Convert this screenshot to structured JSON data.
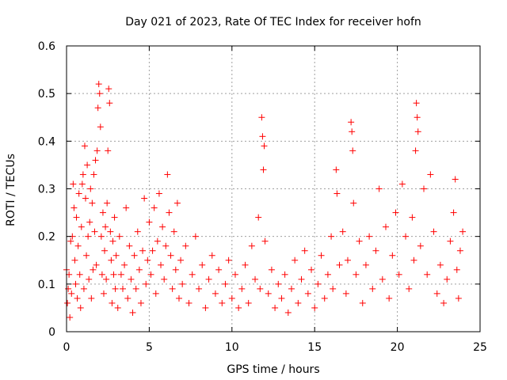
{
  "chart_data": {
    "type": "scatter",
    "title": "Day 021 of 2023, Rate Of TEC Index for receiver hofn",
    "xlabel": "GPS time / hours",
    "ylabel": "ROTI / TECUs",
    "xlim": [
      0,
      25
    ],
    "ylim": [
      0,
      0.6
    ],
    "xticks": [
      0,
      5,
      10,
      15,
      20,
      25
    ],
    "xtick_labels": [
      "0",
      "5",
      "10",
      "15",
      "20",
      "25"
    ],
    "yticks": [
      0,
      0.1,
      0.2,
      0.3,
      0.4,
      0.5,
      0.6
    ],
    "ytick_labels": [
      "0",
      "0.1",
      "0.2",
      "0.3",
      "0.4",
      "0.5",
      "0.6"
    ],
    "grid": true,
    "marker": "+",
    "color": "#ff0000",
    "series": [
      {
        "name": "ROTI",
        "points": [
          [
            0.0,
            0.13
          ],
          [
            0.05,
            0.06
          ],
          [
            0.1,
            0.09
          ],
          [
            0.15,
            0.12
          ],
          [
            0.2,
            0.03
          ],
          [
            0.25,
            0.19
          ],
          [
            0.3,
            0.08
          ],
          [
            0.35,
            0.2
          ],
          [
            0.4,
            0.31
          ],
          [
            0.45,
            0.26
          ],
          [
            0.5,
            0.15
          ],
          [
            0.55,
            0.1
          ],
          [
            0.6,
            0.24
          ],
          [
            0.65,
            0.07
          ],
          [
            0.7,
            0.18
          ],
          [
            0.75,
            0.29
          ],
          [
            0.8,
            0.12
          ],
          [
            0.85,
            0.05
          ],
          [
            0.9,
            0.22
          ],
          [
            0.95,
            0.31
          ],
          [
            1.0,
            0.33
          ],
          [
            1.05,
            0.09
          ],
          [
            1.1,
            0.39
          ],
          [
            1.15,
            0.28
          ],
          [
            1.2,
            0.16
          ],
          [
            1.25,
            0.35
          ],
          [
            1.3,
            0.2
          ],
          [
            1.35,
            0.11
          ],
          [
            1.4,
            0.23
          ],
          [
            1.45,
            0.3
          ],
          [
            1.5,
            0.07
          ],
          [
            1.55,
            0.27
          ],
          [
            1.6,
            0.13
          ],
          [
            1.65,
            0.33
          ],
          [
            1.7,
            0.21
          ],
          [
            1.75,
            0.36
          ],
          [
            1.8,
            0.14
          ],
          [
            1.85,
            0.38
          ],
          [
            1.9,
            0.47
          ],
          [
            1.95,
            0.52
          ],
          [
            2.0,
            0.5
          ],
          [
            2.05,
            0.43
          ],
          [
            2.1,
            0.2
          ],
          [
            2.15,
            0.12
          ],
          [
            2.2,
            0.25
          ],
          [
            2.25,
            0.08
          ],
          [
            2.3,
            0.17
          ],
          [
            2.35,
            0.22
          ],
          [
            2.4,
            0.11
          ],
          [
            2.45,
            0.27
          ],
          [
            2.5,
            0.38
          ],
          [
            2.55,
            0.51
          ],
          [
            2.6,
            0.48
          ],
          [
            2.65,
            0.21
          ],
          [
            2.7,
            0.15
          ],
          [
            2.75,
            0.06
          ],
          [
            2.8,
            0.19
          ],
          [
            2.85,
            0.12
          ],
          [
            2.9,
            0.24
          ],
          [
            2.95,
            0.09
          ],
          [
            3.0,
            0.16
          ],
          [
            3.1,
            0.05
          ],
          [
            3.2,
            0.2
          ],
          [
            3.3,
            0.12
          ],
          [
            3.4,
            0.09
          ],
          [
            3.5,
            0.14
          ],
          [
            3.6,
            0.26
          ],
          [
            3.7,
            0.07
          ],
          [
            3.8,
            0.18
          ],
          [
            3.9,
            0.11
          ],
          [
            4.0,
            0.04
          ],
          [
            4.1,
            0.16
          ],
          [
            4.2,
            0.09
          ],
          [
            4.3,
            0.21
          ],
          [
            4.4,
            0.13
          ],
          [
            4.5,
            0.06
          ],
          [
            4.6,
            0.17
          ],
          [
            4.7,
            0.28
          ],
          [
            4.8,
            0.1
          ],
          [
            4.9,
            0.15
          ],
          [
            5.0,
            0.23
          ],
          [
            5.1,
            0.12
          ],
          [
            5.2,
            0.17
          ],
          [
            5.3,
            0.26
          ],
          [
            5.4,
            0.08
          ],
          [
            5.5,
            0.19
          ],
          [
            5.6,
            0.29
          ],
          [
            5.7,
            0.14
          ],
          [
            5.8,
            0.22
          ],
          [
            5.9,
            0.11
          ],
          [
            6.0,
            0.18
          ],
          [
            6.1,
            0.33
          ],
          [
            6.2,
            0.25
          ],
          [
            6.3,
            0.16
          ],
          [
            6.4,
            0.09
          ],
          [
            6.5,
            0.21
          ],
          [
            6.6,
            0.13
          ],
          [
            6.7,
            0.27
          ],
          [
            6.8,
            0.07
          ],
          [
            6.9,
            0.15
          ],
          [
            7.0,
            0.1
          ],
          [
            7.2,
            0.18
          ],
          [
            7.4,
            0.06
          ],
          [
            7.6,
            0.12
          ],
          [
            7.8,
            0.2
          ],
          [
            8.0,
            0.09
          ],
          [
            8.2,
            0.14
          ],
          [
            8.4,
            0.05
          ],
          [
            8.6,
            0.11
          ],
          [
            8.8,
            0.16
          ],
          [
            9.0,
            0.08
          ],
          [
            9.2,
            0.13
          ],
          [
            9.4,
            0.06
          ],
          [
            9.6,
            0.1
          ],
          [
            9.8,
            0.15
          ],
          [
            10.0,
            0.07
          ],
          [
            10.2,
            0.12
          ],
          [
            10.4,
            0.05
          ],
          [
            10.6,
            0.09
          ],
          [
            10.8,
            0.14
          ],
          [
            11.0,
            0.06
          ],
          [
            11.2,
            0.18
          ],
          [
            11.4,
            0.11
          ],
          [
            11.6,
            0.24
          ],
          [
            11.7,
            0.09
          ],
          [
            11.8,
            0.45
          ],
          [
            11.85,
            0.41
          ],
          [
            11.9,
            0.34
          ],
          [
            11.95,
            0.39
          ],
          [
            12.0,
            0.19
          ],
          [
            12.2,
            0.08
          ],
          [
            12.4,
            0.13
          ],
          [
            12.6,
            0.05
          ],
          [
            12.8,
            0.1
          ],
          [
            13.0,
            0.07
          ],
          [
            13.2,
            0.12
          ],
          [
            13.4,
            0.04
          ],
          [
            13.6,
            0.09
          ],
          [
            13.8,
            0.15
          ],
          [
            14.0,
            0.06
          ],
          [
            14.2,
            0.11
          ],
          [
            14.4,
            0.17
          ],
          [
            14.6,
            0.08
          ],
          [
            14.8,
            0.13
          ],
          [
            15.0,
            0.05
          ],
          [
            15.2,
            0.1
          ],
          [
            15.4,
            0.16
          ],
          [
            15.6,
            0.07
          ],
          [
            15.8,
            0.12
          ],
          [
            16.0,
            0.2
          ],
          [
            16.1,
            0.09
          ],
          [
            16.3,
            0.34
          ],
          [
            16.35,
            0.29
          ],
          [
            16.5,
            0.14
          ],
          [
            16.7,
            0.21
          ],
          [
            16.9,
            0.08
          ],
          [
            17.0,
            0.15
          ],
          [
            17.2,
            0.44
          ],
          [
            17.25,
            0.42
          ],
          [
            17.3,
            0.38
          ],
          [
            17.35,
            0.27
          ],
          [
            17.5,
            0.12
          ],
          [
            17.7,
            0.19
          ],
          [
            17.9,
            0.06
          ],
          [
            18.1,
            0.14
          ],
          [
            18.3,
            0.2
          ],
          [
            18.5,
            0.09
          ],
          [
            18.7,
            0.17
          ],
          [
            18.9,
            0.3
          ],
          [
            19.1,
            0.11
          ],
          [
            19.3,
            0.22
          ],
          [
            19.5,
            0.07
          ],
          [
            19.7,
            0.16
          ],
          [
            19.9,
            0.25
          ],
          [
            20.1,
            0.12
          ],
          [
            20.3,
            0.31
          ],
          [
            20.5,
            0.2
          ],
          [
            20.7,
            0.09
          ],
          [
            20.9,
            0.24
          ],
          [
            21.0,
            0.15
          ],
          [
            21.1,
            0.38
          ],
          [
            21.15,
            0.48
          ],
          [
            21.2,
            0.45
          ],
          [
            21.25,
            0.42
          ],
          [
            21.4,
            0.18
          ],
          [
            21.6,
            0.3
          ],
          [
            21.8,
            0.12
          ],
          [
            22.0,
            0.33
          ],
          [
            22.2,
            0.21
          ],
          [
            22.4,
            0.08
          ],
          [
            22.6,
            0.14
          ],
          [
            22.8,
            0.06
          ],
          [
            23.0,
            0.11
          ],
          [
            23.2,
            0.19
          ],
          [
            23.4,
            0.25
          ],
          [
            23.5,
            0.32
          ],
          [
            23.6,
            0.13
          ],
          [
            23.7,
            0.07
          ],
          [
            23.8,
            0.17
          ],
          [
            23.95,
            0.21
          ]
        ]
      }
    ]
  }
}
